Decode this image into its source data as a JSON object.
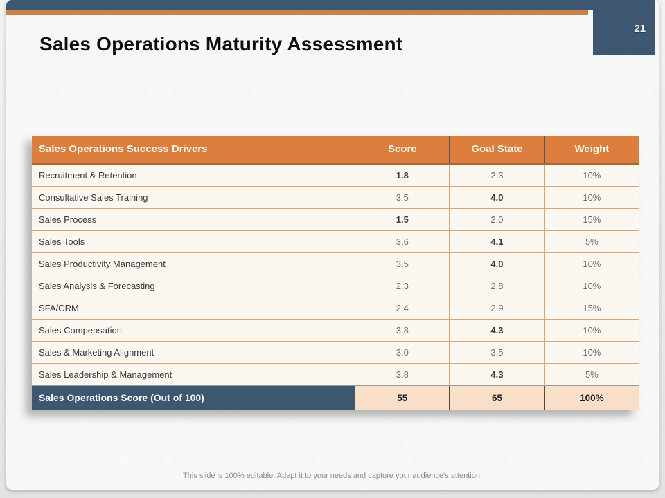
{
  "slide": {
    "page_number": "21",
    "title": "Sales Operations Maturity Assessment",
    "footer": "This slide is 100% editable. Adapt it to your needs and capture your audience's attention."
  },
  "table": {
    "headers": [
      "Sales Operations Success Drivers",
      "Score",
      "Goal State",
      "Weight"
    ],
    "rows": [
      {
        "driver": "Recruitment & Retention",
        "score": "1.8",
        "score_bold": true,
        "goal": "2.3",
        "goal_bold": false,
        "weight": "10%"
      },
      {
        "driver": "Consultative Sales Training",
        "score": "3.5",
        "score_bold": false,
        "goal": "4.0",
        "goal_bold": true,
        "weight": "10%"
      },
      {
        "driver": "Sales Process",
        "score": "1.5",
        "score_bold": true,
        "goal": "2.0",
        "goal_bold": false,
        "weight": "15%"
      },
      {
        "driver": "Sales Tools",
        "score": "3.6",
        "score_bold": false,
        "goal": "4.1",
        "goal_bold": true,
        "weight": "5%"
      },
      {
        "driver": "Sales Productivity Management",
        "score": "3.5",
        "score_bold": false,
        "goal": "4.0",
        "goal_bold": true,
        "weight": "10%"
      },
      {
        "driver": "Sales Analysis & Forecasting",
        "score": "2.3",
        "score_bold": false,
        "goal": "2.8",
        "goal_bold": false,
        "weight": "10%"
      },
      {
        "driver": "SFA/CRM",
        "score": "2.4",
        "score_bold": false,
        "goal": "2.9",
        "goal_bold": false,
        "weight": "15%"
      },
      {
        "driver": "Sales Compensation",
        "score": "3.8",
        "score_bold": false,
        "goal": "4.3",
        "goal_bold": true,
        "weight": "10%"
      },
      {
        "driver": "Sales & Marketing Alignment",
        "score": "3.0",
        "score_bold": false,
        "goal": "3.5",
        "goal_bold": false,
        "weight": "10%"
      },
      {
        "driver": "Sales Leadership & Management",
        "score": "3.8",
        "score_bold": false,
        "goal": "4.3",
        "goal_bold": true,
        "weight": "5%"
      }
    ],
    "total": {
      "label": "Sales Operations Score (Out of 100)",
      "score": "55",
      "goal": "65",
      "weight": "100%"
    }
  },
  "colors": {
    "dark": "#3e5771",
    "accent-line": "#c8824e",
    "header-bg": "#dc7e3d",
    "row-bg": "#fbf7f1",
    "row-line": "#dfa36c",
    "total-bg": "#fadfc8",
    "slide-bg": "#f5f5f2"
  }
}
